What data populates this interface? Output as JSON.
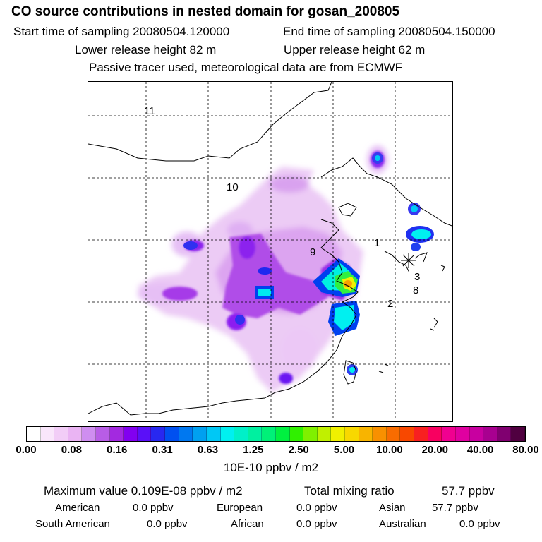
{
  "title": "CO  source contributions in nested domain for gosan_200805",
  "header": {
    "start_label": "Start time of sampling 20080504.120000",
    "end_label": "End time of sampling 20080504.150000",
    "lower_label": "Lower release height   82 m",
    "upper_label": "Upper release height   62 m",
    "note": "Passive tracer used, meteorological data are from ECMWF"
  },
  "map": {
    "region_labels": [
      "11",
      "10",
      "9",
      "1",
      "3",
      "8",
      "2"
    ],
    "receptor_marker": "star-receptor"
  },
  "colorbar": {
    "colors": [
      "#ffffff",
      "#f9e6fb",
      "#f2cdf7",
      "#eab4f3",
      "#cf8ef0",
      "#b85de6",
      "#a329e0",
      "#8200f0",
      "#5a10f8",
      "#2828f0",
      "#0050f0",
      "#0078f0",
      "#00a0f0",
      "#00c8f5",
      "#00f0f0",
      "#00f0c8",
      "#00f0a0",
      "#00f078",
      "#00f040",
      "#30f000",
      "#80f000",
      "#c0f000",
      "#f0f000",
      "#f8d800",
      "#f8b400",
      "#f89000",
      "#f86c00",
      "#f84800",
      "#f82020",
      "#f80060",
      "#f00090",
      "#e000a0",
      "#c800a0",
      "#a80090",
      "#800070",
      "#500040"
    ],
    "tick_labels": [
      "0.00",
      "0.08",
      "0.16",
      "0.31",
      "0.63",
      "1.25",
      "2.50",
      "5.00",
      "10.00",
      "20.00",
      "40.00",
      "80.00"
    ],
    "units": "10E-10 ppbv / m2"
  },
  "footer": {
    "max_label": "Maximum value  0.109E-08 ppbv / m2",
    "total_label": "Total mixing ratio",
    "total_value": "57.7 ppbv",
    "rows": [
      {
        "name": "American",
        "value": "0.0 ppbv"
      },
      {
        "name": "European",
        "value": "0.0 ppbv"
      },
      {
        "name": "Asian",
        "value": "57.7 ppbv"
      },
      {
        "name": "South American",
        "value": "0.0 ppbv"
      },
      {
        "name": "African",
        "value": "0.0 ppbv"
      },
      {
        "name": "Australian",
        "value": "0.0 ppbv"
      }
    ]
  }
}
